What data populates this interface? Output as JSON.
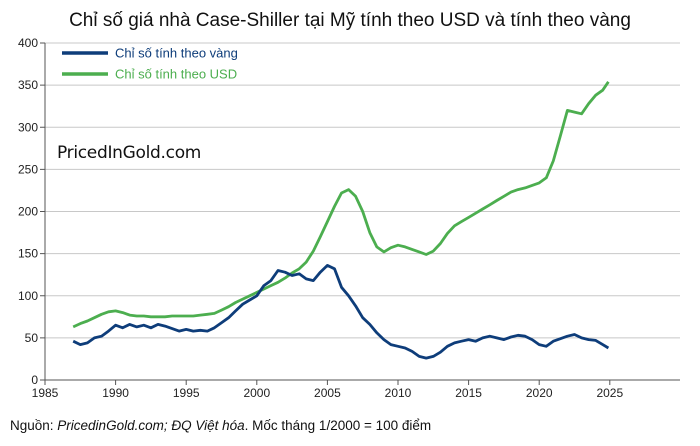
{
  "chart_data": {
    "type": "line",
    "title": "Chỉ số giá nhà Case-Shiller tại Mỹ tính theo USD và tính theo vàng",
    "xlabel": "",
    "ylabel": "",
    "xlim": [
      1985,
      2025
    ],
    "ylim": [
      0,
      400
    ],
    "x_ticks": [
      1985,
      1990,
      1995,
      2000,
      2005,
      2010,
      2015,
      2020,
      2025
    ],
    "y_ticks": [
      0,
      50,
      100,
      150,
      200,
      250,
      300,
      350,
      400
    ],
    "grid": true,
    "legend_position": "top-left",
    "series": [
      {
        "name": "Chỉ số tính theo vàng",
        "color": "#0e3d7a",
        "x": [
          1987.0,
          1987.5,
          1988.0,
          1988.5,
          1989.0,
          1989.5,
          1990.0,
          1990.5,
          1991.0,
          1991.5,
          1992.0,
          1992.5,
          1993.0,
          1993.5,
          1994.0,
          1994.5,
          1995.0,
          1995.5,
          1996.0,
          1996.5,
          1997.0,
          1997.5,
          1998.0,
          1998.5,
          1999.0,
          1999.5,
          2000.0,
          2000.5,
          2001.0,
          2001.5,
          2002.0,
          2002.5,
          2003.0,
          2003.5,
          2004.0,
          2004.5,
          2005.0,
          2005.5,
          2006.0,
          2006.5,
          2007.0,
          2007.5,
          2008.0,
          2008.5,
          2009.0,
          2009.5,
          2010.0,
          2010.5,
          2011.0,
          2011.5,
          2012.0,
          2012.5,
          2013.0,
          2013.5,
          2014.0,
          2014.5,
          2015.0,
          2015.5,
          2016.0,
          2016.5,
          2017.0,
          2017.5,
          2018.0,
          2018.5,
          2019.0,
          2019.5,
          2020.0,
          2020.5,
          2021.0,
          2021.5,
          2022.0,
          2022.5,
          2023.0,
          2023.5,
          2024.0,
          2024.5,
          2024.9
        ],
        "values": [
          46,
          42,
          44,
          50,
          52,
          58,
          65,
          62,
          66,
          63,
          65,
          62,
          66,
          64,
          61,
          58,
          60,
          58,
          59,
          58,
          62,
          68,
          74,
          82,
          90,
          95,
          100,
          112,
          118,
          130,
          128,
          124,
          126,
          120,
          118,
          128,
          136,
          132,
          110,
          100,
          88,
          74,
          66,
          56,
          48,
          42,
          40,
          38,
          34,
          28,
          26,
          28,
          33,
          40,
          44,
          46,
          48,
          46,
          50,
          52,
          50,
          48,
          51,
          53,
          52,
          48,
          42,
          40,
          46,
          49,
          52,
          54,
          50,
          48,
          47,
          42,
          38
        ]
      },
      {
        "name": "Chỉ số tính theo USD",
        "color": "#4cae4f",
        "x": [
          1987.0,
          1987.5,
          1988.0,
          1988.5,
          1989.0,
          1989.5,
          1990.0,
          1990.5,
          1991.0,
          1991.5,
          1992.0,
          1992.5,
          1993.0,
          1993.5,
          1994.0,
          1994.5,
          1995.0,
          1995.5,
          1996.0,
          1996.5,
          1997.0,
          1997.5,
          1998.0,
          1998.5,
          1999.0,
          1999.5,
          2000.0,
          2000.5,
          2001.0,
          2001.5,
          2002.0,
          2002.5,
          2003.0,
          2003.5,
          2004.0,
          2004.5,
          2005.0,
          2005.5,
          2006.0,
          2006.5,
          2007.0,
          2007.5,
          2008.0,
          2008.5,
          2009.0,
          2009.5,
          2010.0,
          2010.5,
          2011.0,
          2011.5,
          2012.0,
          2012.5,
          2013.0,
          2013.5,
          2014.0,
          2014.5,
          2015.0,
          2015.5,
          2016.0,
          2016.5,
          2017.0,
          2017.5,
          2018.0,
          2018.5,
          2019.0,
          2019.5,
          2020.0,
          2020.5,
          2021.0,
          2021.5,
          2022.0,
          2022.5,
          2023.0,
          2023.5,
          2024.0,
          2024.5,
          2024.9
        ],
        "values": [
          63,
          67,
          70,
          74,
          78,
          81,
          82,
          80,
          77,
          76,
          76,
          75,
          75,
          75,
          76,
          76,
          76,
          76,
          77,
          78,
          79,
          83,
          87,
          92,
          96,
          100,
          104,
          108,
          112,
          116,
          121,
          127,
          132,
          140,
          153,
          170,
          188,
          206,
          222,
          226,
          218,
          200,
          175,
          158,
          152,
          157,
          160,
          158,
          155,
          152,
          149,
          153,
          162,
          174,
          183,
          188,
          193,
          198,
          203,
          208,
          213,
          218,
          223,
          226,
          228,
          231,
          234,
          240,
          260,
          290,
          320,
          318,
          316,
          328,
          338,
          344,
          354
        ]
      }
    ],
    "watermark": "PricedInGold.com"
  },
  "source": {
    "prefix": "Nguồn: ",
    "italic": "PricedinGold.com; ĐQ Việt hóa",
    "suffix": ". Mốc tháng 1/2000 = 100 điểm"
  }
}
